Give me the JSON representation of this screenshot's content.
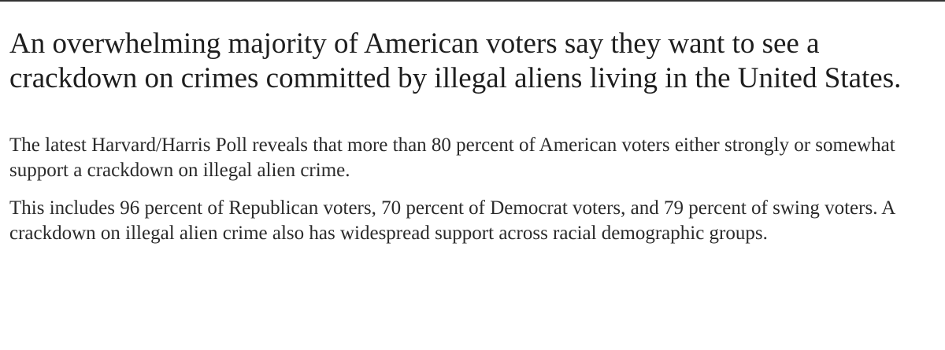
{
  "article": {
    "headline": "An overwhelming majority of American voters say they want to see a crackdown on crimes committed by illegal aliens living in the United States.",
    "paragraphs": [
      "The latest Harvard/Harris Poll reveals that more than 80 percent of American voters either strongly or somewhat support a crackdown on illegal alien crime.",
      "This includes 96 percent of Republican voters, 70 percent of Democrat voters, and 79 percent of swing voters. A crackdown on illegal alien crime also has widespread support across racial demographic groups."
    ]
  }
}
